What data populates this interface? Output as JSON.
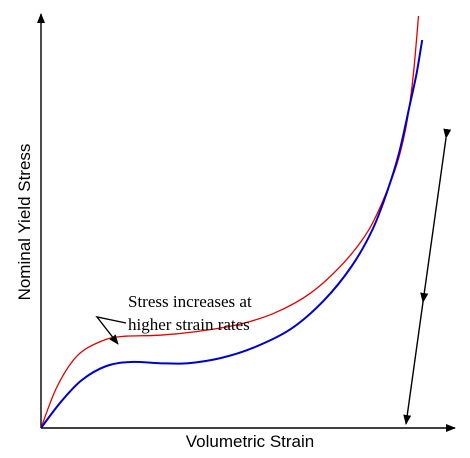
{
  "chart_data": {
    "type": "line",
    "xlabel": "Volumetric Strain",
    "ylabel": "Nominal Yield Stress",
    "xlim": [
      0,
      1
    ],
    "ylim": [
      0,
      1
    ],
    "grid": false,
    "legend": "none",
    "ticks": "none",
    "series": [
      {
        "color": "#e00000",
        "points": [
          [
            0,
            0
          ],
          [
            0.04,
            0.105
          ],
          [
            0.09,
            0.182
          ],
          [
            0.15,
            0.218
          ],
          [
            0.2,
            0.229
          ],
          [
            0.29,
            0.232
          ],
          [
            0.38,
            0.241
          ],
          [
            0.48,
            0.258
          ],
          [
            0.57,
            0.287
          ],
          [
            0.66,
            0.338
          ],
          [
            0.74,
            0.413
          ],
          [
            0.8,
            0.493
          ],
          [
            0.84,
            0.578
          ],
          [
            0.87,
            0.659
          ],
          [
            0.89,
            0.74
          ],
          [
            0.903,
            0.82
          ],
          [
            0.912,
            0.9
          ],
          [
            0.918,
            0.97
          ],
          [
            0.923,
            1.03
          ]
        ]
      },
      {
        "color": "#0000cc",
        "points": [
          [
            0,
            0
          ],
          [
            0.05,
            0.067
          ],
          [
            0.1,
            0.12
          ],
          [
            0.16,
            0.155
          ],
          [
            0.22,
            0.165
          ],
          [
            0.29,
            0.162
          ],
          [
            0.36,
            0.162
          ],
          [
            0.44,
            0.175
          ],
          [
            0.52,
            0.201
          ],
          [
            0.61,
            0.247
          ],
          [
            0.69,
            0.317
          ],
          [
            0.76,
            0.405
          ],
          [
            0.81,
            0.495
          ],
          [
            0.846,
            0.59
          ],
          [
            0.875,
            0.686
          ],
          [
            0.899,
            0.795
          ],
          [
            0.918,
            0.885
          ],
          [
            0.932,
            0.97
          ]
        ]
      }
    ],
    "annotations": [
      {
        "lines": [
          "Stress increases at",
          "higher strain rates"
        ]
      }
    ]
  }
}
